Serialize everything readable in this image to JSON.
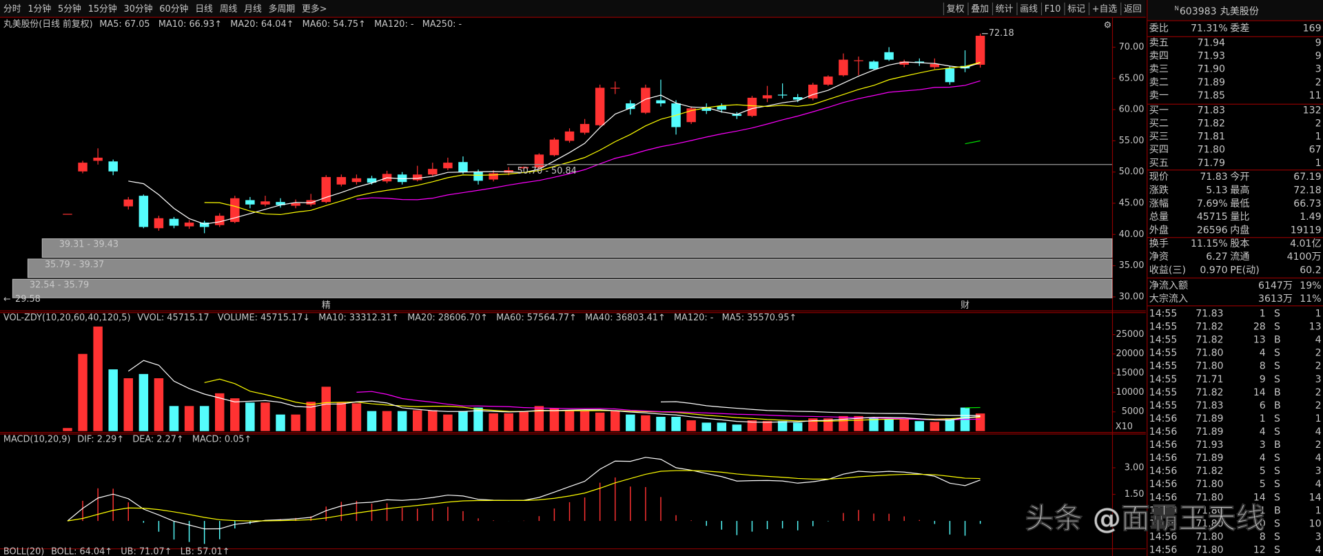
{
  "toolbar": {
    "periods": [
      "分时",
      "1分钟",
      "5分钟",
      "15分钟",
      "30分钟",
      "60分钟",
      "日线",
      "周线",
      "月线",
      "多周期",
      "更多>"
    ],
    "active_index": 6,
    "buttons": [
      "复权",
      "叠加",
      "统计",
      "画线",
      "F10",
      "标记",
      "+自选",
      "返回"
    ]
  },
  "chart_data": [
    {
      "type": "candlestick",
      "title": "丸美股份(日线 前复权)",
      "indicators": [
        {
          "label": "MA5: 67.05",
          "color": "#ffffff"
        },
        {
          "label": "MA10: 66.93↑",
          "color": "#ffff00"
        },
        {
          "label": "MA20: 64.04↑",
          "color": "#ff00ff"
        },
        {
          "label": "MA60: 54.75↑",
          "color": "#00e600"
        },
        {
          "label": "MA120: -",
          "color": "#ffffff"
        },
        {
          "label": "MA250: -",
          "color": "#3b6bff"
        }
      ],
      "up_color": "#ff3232",
      "down_color": "#54fcfc",
      "open": [
        43.3,
        50.1,
        51.8,
        51.7,
        44.5,
        46.2,
        41.0,
        42.5,
        41.3,
        41.9,
        41.5,
        42.0,
        45.5,
        44.8,
        45.2,
        44.6,
        44.8,
        45.2,
        48.0,
        48.4,
        49.0,
        48.5,
        49.6,
        48.7,
        49.6,
        50.6,
        51.6,
        50.0,
        48.8,
        49.9,
        50.6,
        50.7,
        52.7,
        55.0,
        56.3,
        57.5,
        63.4,
        61.0,
        59.5,
        61.5,
        61.0,
        58.0,
        60.3,
        60.6,
        59.3,
        59.0,
        61.8,
        62.4,
        62.0,
        61.8,
        64.0,
        65.5,
        67.8,
        67.7,
        69.2,
        67.2,
        67.7,
        66.8,
        66.6,
        67.0,
        67.19
      ],
      "high": [
        43.3,
        51.8,
        53.8,
        52.0,
        46.0,
        46.4,
        43.0,
        42.8,
        42.3,
        42.2,
        43.4,
        46.2,
        46.0,
        46.2,
        45.8,
        45.6,
        46.5,
        49.5,
        49.6,
        49.6,
        49.4,
        50.2,
        50.0,
        51.0,
        51.5,
        52.3,
        52.5,
        50.4,
        50.3,
        50.8,
        50.9,
        53.0,
        55.5,
        57.0,
        58.5,
        64.0,
        64.5,
        61.5,
        64.0,
        64.8,
        61.5,
        60.5,
        61.0,
        61.0,
        59.6,
        62.2,
        63.8,
        64.2,
        62.5,
        64.3,
        65.5,
        69.0,
        68.5,
        67.9,
        70.0,
        68.0,
        68.2,
        68.2,
        67.0,
        69.5,
        72.18
      ],
      "low": [
        43.3,
        49.8,
        51.2,
        49.5,
        44.0,
        41.0,
        40.6,
        41.0,
        40.9,
        40.2,
        41.2,
        41.8,
        44.2,
        44.5,
        44.3,
        44.2,
        44.5,
        45.0,
        47.7,
        48.0,
        48.0,
        48.2,
        48.0,
        48.5,
        49.3,
        50.3,
        49.7,
        48.0,
        48.5,
        49.5,
        50.5,
        50.5,
        52.5,
        54.7,
        56.0,
        57.3,
        62.5,
        59.2,
        59.3,
        60.5,
        56.0,
        57.7,
        59.3,
        59.5,
        58.5,
        58.8,
        61.2,
        61.8,
        61.2,
        61.5,
        63.8,
        65.3,
        65.5,
        66.4,
        67.8,
        66.8,
        67.0,
        66.5,
        64.0,
        66.0,
        66.73
      ],
      "close": [
        43.3,
        51.5,
        52.3,
        50.1,
        45.6,
        41.2,
        42.6,
        41.4,
        41.9,
        41.2,
        43.0,
        45.8,
        44.8,
        45.3,
        44.7,
        45.0,
        45.5,
        49.2,
        49.2,
        49.0,
        48.3,
        49.7,
        48.4,
        49.6,
        50.5,
        51.5,
        50.0,
        48.6,
        49.8,
        50.3,
        50.8,
        52.8,
        55.2,
        56.5,
        57.7,
        63.5,
        63.5,
        60.1,
        63.5,
        61.0,
        57.2,
        60.2,
        59.8,
        60.0,
        59.0,
        61.9,
        62.3,
        62.3,
        61.6,
        64.0,
        65.3,
        68.0,
        67.9,
        66.5,
        68.0,
        67.7,
        67.5,
        67.3,
        64.4,
        66.6,
        71.83
      ],
      "ylim": [
        27.82,
        74.72
      ],
      "yticks": [
        {
          "value": 70,
          "label": "70.00"
        },
        {
          "value": 65,
          "label": "65.00"
        },
        {
          "value": 60,
          "label": "60.00"
        },
        {
          "value": 55,
          "label": "55.00"
        },
        {
          "value": 50,
          "label": "50.00"
        },
        {
          "value": 45,
          "label": "45.00"
        },
        {
          "value": 40,
          "label": "40.00"
        },
        {
          "value": 35,
          "label": "35.00"
        },
        {
          "value": 30,
          "label": "30.00"
        }
      ],
      "high_label": "72.18",
      "annotation": {
        "index": 30,
        "label": "50.70 - 50.84"
      },
      "ranges": [
        "39.31 - 39.43",
        "35.79 - 39.37",
        "32.54 - 35.79"
      ],
      "low_label": "29.58",
      "markers": [
        {
          "index": 17,
          "label": "精"
        },
        {
          "index": 59,
          "label": "财"
        }
      ]
    },
    {
      "type": "bar",
      "title": "VOL-ZDY(10,20,60,40,120,5)",
      "indicators": [
        {
          "label": "VVOL: 45715.17",
          "color": "#ffffff"
        },
        {
          "label": "VOLUME: 45715.17↓",
          "color": "#ffff00"
        },
        {
          "label": "MA10: 33312.31↑",
          "color": "#ffff00"
        },
        {
          "label": "MA20: 28606.70↑",
          "color": "#ff00ff"
        },
        {
          "label": "MA60: 57564.77↑",
          "color": "#00e600"
        },
        {
          "label": "MA40: 36803.41↑",
          "color": "#ffffff"
        },
        {
          "label": "MA120: -",
          "color": "#3b6bff"
        },
        {
          "label": "MA5: 35570.95↑",
          "color": "#ffffff"
        }
      ],
      "values": [
        800,
        20000,
        27100,
        16000,
        13700,
        14800,
        13700,
        6500,
        6500,
        6500,
        9800,
        8500,
        7400,
        7400,
        4300,
        4300,
        7600,
        11500,
        7400,
        7200,
        5200,
        5200,
        5200,
        5400,
        5400,
        4300,
        5200,
        6100,
        4600,
        4600,
        5000,
        6500,
        5900,
        5200,
        5200,
        4800,
        5200,
        4300,
        4100,
        3700,
        3700,
        2800,
        2200,
        2200,
        1700,
        2800,
        2600,
        2600,
        2200,
        3300,
        3300,
        3900,
        3900,
        3500,
        3000,
        3000,
        2600,
        2400,
        3300,
        6100,
        4572
      ],
      "ylim": [
        0,
        30600
      ],
      "yticks": [
        25000,
        20000,
        15000,
        10000,
        5000
      ],
      "unit_label": "X10"
    },
    {
      "type": "macd",
      "title": "MACD(10,20,9)",
      "indicators": [
        {
          "label": "DIF: 2.29↑",
          "color": "#ffffff"
        },
        {
          "label": "DEA: 2.27↑",
          "color": "#ffff00"
        },
        {
          "label": "MACD: 0.05↑",
          "color": "#ff00ff"
        }
      ],
      "ylim": [
        -1.55,
        4.88
      ],
      "yticks": [
        {
          "value": 3,
          "label": "3.00"
        },
        {
          "value": 1.5,
          "label": "1.50"
        }
      ]
    }
  ],
  "boll": {
    "title": "BOLL(20)",
    "indicators": [
      {
        "label": "BOLL: 64.04↑",
        "color": "#ffffff"
      },
      {
        "label": "UB: 71.07↑",
        "color": "#ffff00"
      },
      {
        "label": "LB: 57.01↑",
        "color": "#ff00ff"
      }
    ]
  },
  "quote": {
    "flag": "N",
    "code": "603983",
    "name": "丸美股份",
    "wei": [
      "委比",
      "71.31%",
      "委差",
      "169"
    ],
    "asks": [
      [
        "卖五",
        "71.94",
        "9"
      ],
      [
        "卖四",
        "71.93",
        "9"
      ],
      [
        "卖三",
        "71.90",
        "3"
      ],
      [
        "卖二",
        "71.89",
        "2"
      ],
      [
        "卖一",
        "71.85",
        "11"
      ]
    ],
    "bids": [
      [
        "买一",
        "71.83",
        "132"
      ],
      [
        "买二",
        "71.82",
        "2"
      ],
      [
        "买三",
        "71.81",
        "1"
      ],
      [
        "买四",
        "71.80",
        "67"
      ],
      [
        "买五",
        "71.79",
        "1"
      ]
    ],
    "stats": [
      [
        "现价",
        "71.83",
        "今开",
        "67.19"
      ],
      [
        "涨跌",
        "5.13",
        "最高",
        "72.18"
      ],
      [
        "涨幅",
        "7.69%",
        "最低",
        "66.73"
      ],
      [
        "总量",
        "45715",
        "量比",
        "1.49"
      ],
      [
        "外盘",
        "26596",
        "内盘",
        "19119"
      ]
    ],
    "stats2": [
      [
        "换手",
        "11.15%",
        "股本",
        "4.01亿"
      ],
      [
        "净资",
        "6.27",
        "流通",
        "4100万"
      ],
      [
        "收益(三)",
        "0.970",
        "PE(动)",
        "60.2"
      ]
    ],
    "flows": [
      [
        "净流入额",
        "6147万",
        "19%"
      ],
      [
        "大宗流入",
        "3613万",
        "11%"
      ]
    ]
  },
  "trades": [
    [
      "14:55",
      "71.83",
      "1",
      "S",
      "1"
    ],
    [
      "14:55",
      "71.82",
      "28",
      "S",
      "13"
    ],
    [
      "14:55",
      "71.82",
      "13",
      "B",
      "4"
    ],
    [
      "14:55",
      "71.80",
      "4",
      "S",
      "2"
    ],
    [
      "14:55",
      "71.80",
      "8",
      "S",
      "2"
    ],
    [
      "14:55",
      "71.71",
      "9",
      "S",
      "3"
    ],
    [
      "14:55",
      "71.82",
      "14",
      "B",
      "2"
    ],
    [
      "14:55",
      "71.83",
      "6",
      "B",
      "2"
    ],
    [
      "14:56",
      "71.89",
      "1",
      "S",
      "1"
    ],
    [
      "14:56",
      "71.89",
      "4",
      "S",
      "4"
    ],
    [
      "14:56",
      "71.93",
      "3",
      "B",
      "2"
    ],
    [
      "14:56",
      "71.89",
      "4",
      "S",
      "4"
    ],
    [
      "14:56",
      "71.82",
      "5",
      "S",
      "3"
    ],
    [
      "14:56",
      "71.80",
      "5",
      "S",
      "4"
    ],
    [
      "14:56",
      "71.80",
      "14",
      "S",
      "14"
    ],
    [
      "14:56",
      "71.80",
      "1",
      "B",
      "1"
    ],
    [
      "14:56",
      "71.80",
      "10",
      "S",
      "10"
    ],
    [
      "14:56",
      "71.80",
      "8",
      "S",
      "3"
    ],
    [
      "14:56",
      "71.80",
      "12",
      "S",
      "4"
    ]
  ],
  "watermark": "头条 @面霸王天线"
}
